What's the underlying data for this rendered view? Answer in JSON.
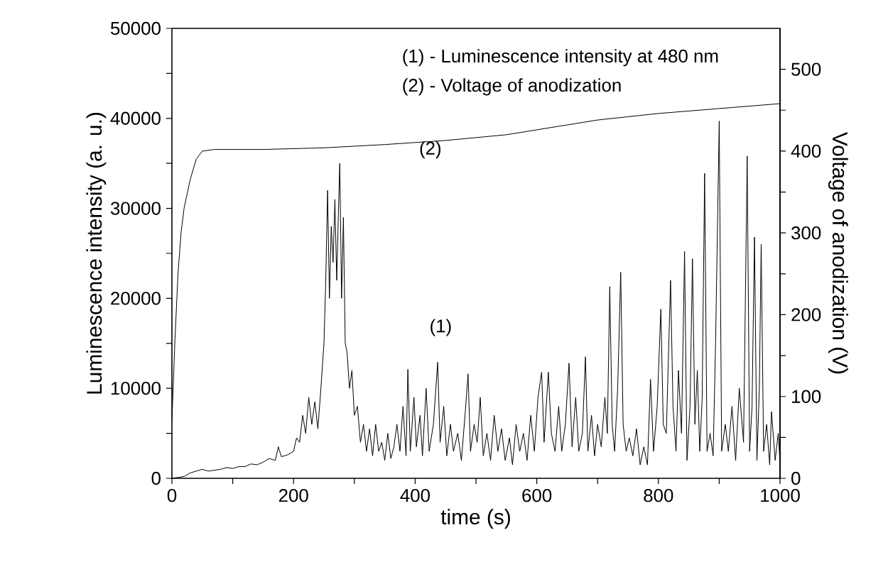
{
  "chart_data": {
    "type": "line",
    "xlabel": "time (s)",
    "ylabel": "Luminescence intensity (a. u.)",
    "y2label": "Voltage of anodization (V)",
    "annotations": [
      "(1) - Luminescence intensity at 480 nm",
      "(2) - Voltage of anodization",
      "(1)",
      "(2)"
    ],
    "xlim": [
      0,
      1000
    ],
    "ylim": [
      0,
      50000
    ],
    "y2lim": [
      0,
      550
    ],
    "xticks": [
      0,
      {
        "value": 100,
        "label": null
      },
      200,
      {
        "value": 300,
        "label": null
      },
      400,
      {
        "value": 500,
        "label": null
      },
      600,
      {
        "value": 700,
        "label": null
      },
      800,
      {
        "value": 900,
        "label": null
      },
      1000
    ],
    "yticks": [
      0,
      {
        "value": 5000,
        "label": null
      },
      10000,
      {
        "value": 15000,
        "label": null
      },
      20000,
      {
        "value": 25000,
        "label": null
      },
      30000,
      {
        "value": 35000,
        "label": null
      },
      40000,
      {
        "value": 45000,
        "label": null
      },
      50000
    ],
    "y2ticks": [
      0,
      {
        "value": 50,
        "label": null
      },
      100,
      {
        "value": 150,
        "label": null
      },
      200,
      {
        "value": 250,
        "label": null
      },
      300,
      {
        "value": 350,
        "label": null
      },
      400,
      {
        "value": 450,
        "label": null
      },
      500
    ],
    "grid": false,
    "marker": "none",
    "line_style": "solid",
    "series": [
      {
        "color": "#000000",
        "x": [
          0,
          10,
          20,
          30,
          40,
          50,
          60,
          70,
          80,
          90,
          100,
          110,
          120,
          130,
          140,
          150,
          160,
          170,
          175,
          180,
          190,
          200,
          205,
          210,
          215,
          220,
          225,
          230,
          235,
          240,
          245,
          250,
          253,
          256,
          259,
          262,
          265,
          268,
          271,
          274,
          276,
          279,
          282,
          285,
          288,
          292,
          296,
          300,
          305,
          310,
          315,
          320,
          325,
          330,
          335,
          340,
          345,
          350,
          355,
          360,
          365,
          370,
          375,
          380,
          385,
          388,
          392,
          398,
          402,
          408,
          412,
          418,
          423,
          430,
          437,
          441,
          447,
          452,
          458,
          463,
          470,
          476,
          482,
          487,
          491,
          497,
          502,
          507,
          512,
          518,
          524,
          530,
          536,
          542,
          548,
          555,
          560,
          566,
          572,
          578,
          584,
          590,
          596,
          602,
          608,
          612,
          619,
          624,
          630,
          636,
          641,
          647,
          653,
          658,
          664,
          669,
          675,
          680,
          684,
          690,
          695,
          700,
          706,
          712,
          716,
          720,
          724,
          728,
          733,
          738,
          742,
          747,
          752,
          758,
          764,
          770,
          776,
          782,
          787,
          792,
          798,
          804,
          808,
          813,
          820,
          824,
          829,
          833,
          838,
          843,
          847,
          852,
          856,
          860,
          864,
          868,
          872,
          876,
          880,
          885,
          890,
          894,
          900,
          904,
          910,
          915,
          921,
          927,
          933,
          940,
          946,
          950,
          954,
          958,
          962,
          966,
          969,
          973,
          978,
          983,
          986,
          992,
          997,
          1000
        ],
        "values": [
          0,
          100,
          200,
          600,
          800,
          1000,
          800,
          900,
          1000,
          1200,
          1100,
          1300,
          1300,
          1600,
          1500,
          1800,
          2200,
          2000,
          3500,
          2400,
          2600,
          3000,
          4500,
          4000,
          7000,
          5000,
          9000,
          6000,
          8500,
          5500,
          10000,
          15000,
          22000,
          32000,
          20000,
          28000,
          24000,
          31000,
          22000,
          30000,
          35000,
          20000,
          29000,
          15000,
          14000,
          10000,
          12000,
          7000,
          8000,
          4000,
          6000,
          3000,
          5500,
          2500,
          6000,
          3000,
          4000,
          2000,
          5000,
          2200,
          3500,
          6000,
          3000,
          8000,
          2500,
          12100,
          3000,
          9000,
          3500,
          7000,
          2500,
          10000,
          3000,
          6000,
          12900,
          4000,
          8000,
          2500,
          6000,
          3000,
          5000,
          2000,
          7000,
          11600,
          3000,
          6000,
          4000,
          9000,
          2500,
          5000,
          2000,
          7000,
          3000,
          5500,
          2000,
          4500,
          1500,
          6000,
          3000,
          5000,
          2000,
          7000,
          3000,
          9000,
          11800,
          4000,
          11800,
          5000,
          3000,
          8000,
          3000,
          6000,
          12800,
          3500,
          9000,
          3000,
          5000,
          13500,
          3000,
          7000,
          2500,
          6000,
          3500,
          9000,
          5000,
          21300,
          6000,
          3000,
          10000,
          22900,
          6000,
          3000,
          4500,
          2500,
          5500,
          1500,
          3500,
          1500,
          11000,
          3000,
          8000,
          18800,
          6000,
          5000,
          22000,
          8000,
          3000,
          12000,
          5000,
          25200,
          2000,
          8000,
          24400,
          6000,
          12000,
          3000,
          9000,
          33900,
          3000,
          5000,
          2500,
          15000,
          39700,
          3000,
          6000,
          3000,
          8000,
          2000,
          10000,
          4000,
          35800,
          3000,
          8000,
          26800,
          2000,
          10000,
          26000,
          3000,
          6000,
          1500,
          7400,
          2000,
          5000,
          1800
        ]
      },
      {
        "color": "#000000",
        "axis": "y2",
        "x": [
          0,
          5,
          10,
          15,
          20,
          30,
          40,
          50,
          70,
          150,
          250,
          350,
          450,
          550,
          650,
          700,
          800,
          900,
          1000
        ],
        "values": [
          70,
          170,
          250,
          300,
          330,
          365,
          390,
          400,
          402,
          402,
          404,
          408,
          413,
          420,
          432,
          438,
          446,
          452,
          458
        ]
      }
    ]
  }
}
